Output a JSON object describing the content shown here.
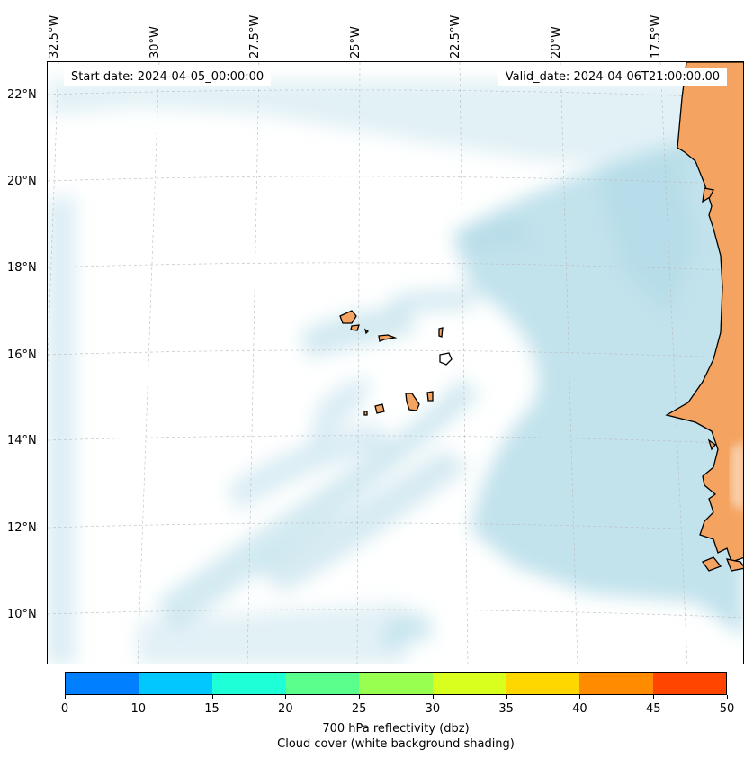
{
  "header": {
    "start_date": "Start date: 2024-04-05_00:00:00",
    "valid_date": "Valid_date: 2024-04-06T21:00:00.00"
  },
  "map": {
    "projection_note": "",
    "longitude_labels": [
      "32.5°W",
      "30°W",
      "27.5°W",
      "25°W",
      "22.5°W",
      "20°W",
      "17.5°W"
    ],
    "latitude_labels": [
      "22°N",
      "20°N",
      "18°N",
      "16°N",
      "14°N",
      "12°N",
      "10°N"
    ],
    "gridlines": true,
    "land_color": "#f4a460",
    "cloud_color": "#add8e6",
    "coastline_color": "#000000"
  },
  "colorbar": {
    "ticks": [
      "0",
      "10",
      "15",
      "20",
      "25",
      "30",
      "35",
      "40",
      "45",
      "50"
    ],
    "colors": [
      "#0080ff",
      "#00c8ff",
      "#1effd8",
      "#5aff8c",
      "#98ff50",
      "#d8ff1e",
      "#ffd700",
      "#ff8c00",
      "#ff4500"
    ],
    "label": "700 hPa reflectivity (dbz)",
    "sublabel": "Cloud cover (white background shading)"
  }
}
